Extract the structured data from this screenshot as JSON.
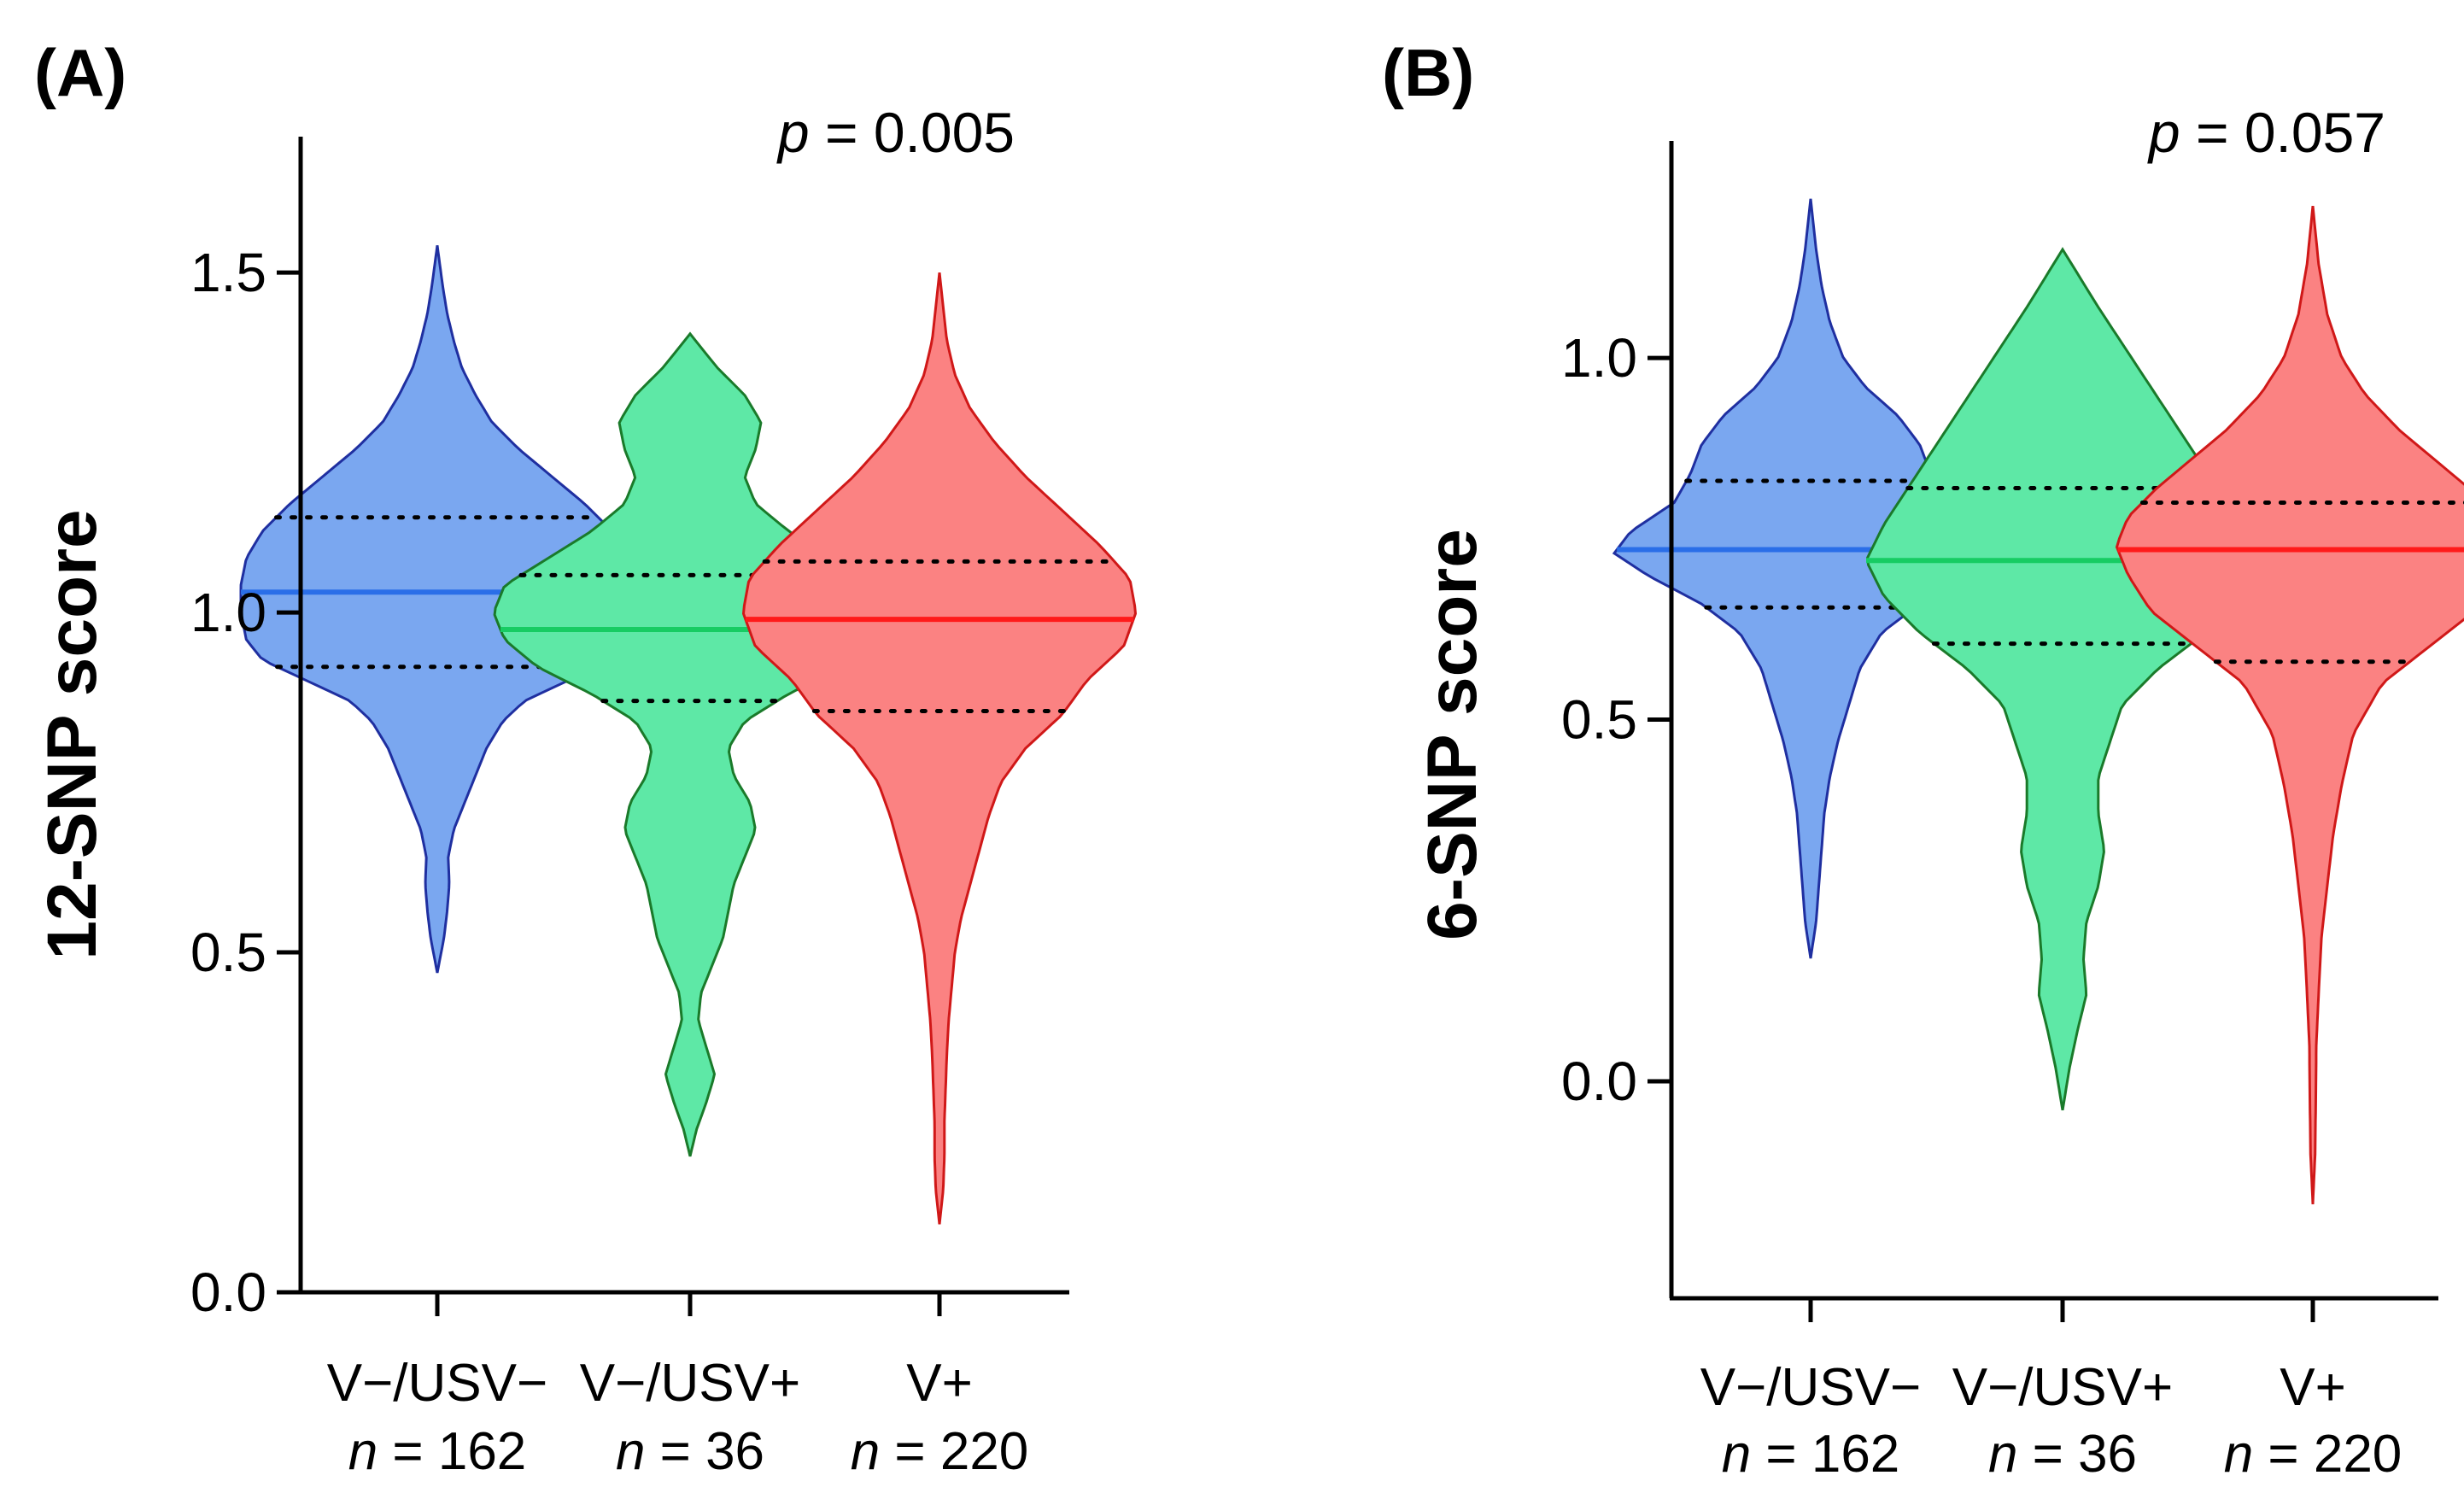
{
  "chart_data": [
    {
      "type": "violin",
      "panel_label": "(A)",
      "ylabel": "12-SNP score",
      "ylim": [
        0.0,
        1.7
      ],
      "yticks": [
        "0.0",
        "0.5",
        "1.0",
        "1.5"
      ],
      "ytick_values": [
        0.0,
        0.5,
        1.0,
        1.5
      ],
      "annotation": {
        "symbol": "p",
        "text": " = 0.005"
      },
      "groups": [
        {
          "category": "V−/USV−",
          "n_symbol": "n",
          "n_text": " = 162",
          "color": "#7aa7f0",
          "edge": "#1f2fa0",
          "median_color": "#2a6ee8",
          "median": 1.03,
          "q1": 0.92,
          "q3": 1.14,
          "min": 0.47,
          "max": 1.54,
          "profile": [
            [
              0.47,
              0
            ],
            [
              0.52,
              0.012
            ],
            [
              0.56,
              0.018
            ],
            [
              0.6,
              0.022
            ],
            [
              0.64,
              0.02
            ],
            [
              0.68,
              0.03
            ],
            [
              0.72,
              0.05
            ],
            [
              0.76,
              0.07
            ],
            [
              0.8,
              0.09
            ],
            [
              0.84,
              0.12
            ],
            [
              0.87,
              0.16
            ],
            [
              0.9,
              0.24
            ],
            [
              0.93,
              0.32
            ],
            [
              0.96,
              0.35
            ],
            [
              1.0,
              0.36
            ],
            [
              1.04,
              0.36
            ],
            [
              1.08,
              0.35
            ],
            [
              1.12,
              0.32
            ],
            [
              1.16,
              0.27
            ],
            [
              1.2,
              0.21
            ],
            [
              1.24,
              0.15
            ],
            [
              1.28,
              0.1
            ],
            [
              1.32,
              0.07
            ],
            [
              1.36,
              0.045
            ],
            [
              1.4,
              0.03
            ],
            [
              1.44,
              0.018
            ],
            [
              1.48,
              0.01
            ],
            [
              1.54,
              0
            ]
          ]
        },
        {
          "category": "V−/USV+",
          "n_symbol": "n",
          "n_text": " = 36",
          "color": "#5ee8a6",
          "edge": "#1a7a2a",
          "median_color": "#17cc63",
          "median": 0.975,
          "q1": 0.87,
          "q3": 1.055,
          "min": 0.2,
          "max": 1.41,
          "profile": [
            [
              0.2,
              0
            ],
            [
              0.24,
              0.012
            ],
            [
              0.28,
              0.03
            ],
            [
              0.32,
              0.045
            ],
            [
              0.36,
              0.03
            ],
            [
              0.4,
              0.015
            ],
            [
              0.44,
              0.02
            ],
            [
              0.48,
              0.04
            ],
            [
              0.52,
              0.06
            ],
            [
              0.56,
              0.07
            ],
            [
              0.6,
              0.08
            ],
            [
              0.64,
              0.1
            ],
            [
              0.68,
              0.12
            ],
            [
              0.72,
              0.11
            ],
            [
              0.76,
              0.08
            ],
            [
              0.8,
              0.07
            ],
            [
              0.84,
              0.1
            ],
            [
              0.88,
              0.18
            ],
            [
              0.92,
              0.28
            ],
            [
              0.96,
              0.34
            ],
            [
              1.0,
              0.36
            ],
            [
              1.04,
              0.34
            ],
            [
              1.08,
              0.26
            ],
            [
              1.12,
              0.18
            ],
            [
              1.16,
              0.12
            ],
            [
              1.2,
              0.1
            ],
            [
              1.24,
              0.12
            ],
            [
              1.28,
              0.13
            ],
            [
              1.32,
              0.1
            ],
            [
              1.36,
              0.05
            ],
            [
              1.41,
              0
            ]
          ]
        },
        {
          "category": "V+",
          "n_symbol": "n",
          "n_text": " = 220",
          "color": "#fb8282",
          "edge": "#d01818",
          "median_color": "#ff1a1a",
          "median": 0.99,
          "q1": 0.855,
          "q3": 1.075,
          "min": 0.1,
          "max": 1.5,
          "profile": [
            [
              0.1,
              0
            ],
            [
              0.15,
              0.006
            ],
            [
              0.2,
              0.008
            ],
            [
              0.25,
              0.008
            ],
            [
              0.3,
              0.01
            ],
            [
              0.35,
              0.012
            ],
            [
              0.4,
              0.015
            ],
            [
              0.45,
              0.02
            ],
            [
              0.5,
              0.025
            ],
            [
              0.55,
              0.035
            ],
            [
              0.6,
              0.05
            ],
            [
              0.65,
              0.065
            ],
            [
              0.7,
              0.08
            ],
            [
              0.75,
              0.1
            ],
            [
              0.8,
              0.14
            ],
            [
              0.85,
              0.2
            ],
            [
              0.9,
              0.24
            ],
            [
              0.95,
              0.3
            ],
            [
              1.0,
              0.32
            ],
            [
              1.05,
              0.31
            ],
            [
              1.1,
              0.26
            ],
            [
              1.15,
              0.2
            ],
            [
              1.2,
              0.14
            ],
            [
              1.25,
              0.09
            ],
            [
              1.3,
              0.05
            ],
            [
              1.35,
              0.025
            ],
            [
              1.4,
              0.012
            ],
            [
              1.45,
              0.006
            ],
            [
              1.5,
              0
            ]
          ]
        }
      ]
    },
    {
      "type": "violin",
      "panel_label": "(B)",
      "ylabel": "6-SNP score",
      "ylim": [
        -0.3,
        1.3
      ],
      "yticks": [
        "0.0",
        "0.5",
        "1.0"
      ],
      "ytick_values": [
        0.0,
        0.5,
        1.0
      ],
      "annotation": {
        "symbol": "p",
        "text": " = 0.057"
      },
      "groups": [
        {
          "category": "V−/USV−",
          "n_symbol": "n",
          "n_text": " = 162",
          "color": "#7aa7f0",
          "edge": "#1f2fa0",
          "median_color": "#2a6ee8",
          "median": 0.735,
          "q1": 0.655,
          "q3": 0.83,
          "min": 0.17,
          "max": 1.22,
          "profile": [
            [
              0.17,
              0
            ],
            [
              0.22,
              0.01
            ],
            [
              0.27,
              0.015
            ],
            [
              0.32,
              0.02
            ],
            [
              0.37,
              0.025
            ],
            [
              0.42,
              0.035
            ],
            [
              0.47,
              0.05
            ],
            [
              0.52,
              0.07
            ],
            [
              0.57,
              0.09
            ],
            [
              0.62,
              0.13
            ],
            [
              0.66,
              0.2
            ],
            [
              0.7,
              0.3
            ],
            [
              0.73,
              0.36
            ],
            [
              0.76,
              0.33
            ],
            [
              0.8,
              0.25
            ],
            [
              0.84,
              0.22
            ],
            [
              0.88,
              0.2
            ],
            [
              0.92,
              0.16
            ],
            [
              0.96,
              0.1
            ],
            [
              1.0,
              0.06
            ],
            [
              1.05,
              0.035
            ],
            [
              1.1,
              0.02
            ],
            [
              1.15,
              0.01
            ],
            [
              1.22,
              0
            ]
          ]
        },
        {
          "category": "V−/USV+",
          "n_symbol": "n",
          "n_text": " = 36",
          "color": "#5ee8a6",
          "edge": "#1a7a2a",
          "median_color": "#17cc63",
          "median": 0.72,
          "q1": 0.605,
          "q3": 0.82,
          "min": -0.04,
          "max": 1.15,
          "profile": [
            [
              -0.04,
              0
            ],
            [
              0.02,
              0.012
            ],
            [
              0.07,
              0.025
            ],
            [
              0.12,
              0.04
            ],
            [
              0.17,
              0.035
            ],
            [
              0.22,
              0.04
            ],
            [
              0.27,
              0.06
            ],
            [
              0.32,
              0.07
            ],
            [
              0.37,
              0.06
            ],
            [
              0.42,
              0.06
            ],
            [
              0.47,
              0.08
            ],
            [
              0.52,
              0.1
            ],
            [
              0.57,
              0.16
            ],
            [
              0.62,
              0.24
            ],
            [
              0.67,
              0.3
            ],
            [
              0.72,
              0.33
            ],
            [
              0.77,
              0.3
            ],
            [
              0.82,
              0.26
            ],
            [
              0.87,
              0.22
            ],
            [
              0.92,
              0.18
            ],
            [
              0.97,
              0.14
            ],
            [
              1.02,
              0.1
            ],
            [
              1.07,
              0.06
            ],
            [
              1.11,
              0.03
            ],
            [
              1.15,
              0
            ]
          ]
        },
        {
          "category": "V+",
          "n_symbol": "n",
          "n_text": " = 220",
          "color": "#fb8282",
          "edge": "#d01818",
          "median_color": "#ff1a1a",
          "median": 0.735,
          "q1": 0.58,
          "q3": 0.8,
          "min": -0.17,
          "max": 1.21,
          "profile": [
            [
              -0.17,
              0
            ],
            [
              -0.1,
              0.004
            ],
            [
              -0.03,
              0.005
            ],
            [
              0.05,
              0.006
            ],
            [
              0.12,
              0.01
            ],
            [
              0.2,
              0.015
            ],
            [
              0.27,
              0.025
            ],
            [
              0.34,
              0.035
            ],
            [
              0.41,
              0.05
            ],
            [
              0.48,
              0.07
            ],
            [
              0.55,
              0.12
            ],
            [
              0.6,
              0.2
            ],
            [
              0.65,
              0.28
            ],
            [
              0.7,
              0.32
            ],
            [
              0.74,
              0.34
            ],
            [
              0.78,
              0.32
            ],
            [
              0.82,
              0.27
            ],
            [
              0.86,
              0.21
            ],
            [
              0.9,
              0.15
            ],
            [
              0.95,
              0.09
            ],
            [
              1.0,
              0.05
            ],
            [
              1.06,
              0.025
            ],
            [
              1.13,
              0.01
            ],
            [
              1.21,
              0
            ]
          ]
        }
      ]
    }
  ]
}
